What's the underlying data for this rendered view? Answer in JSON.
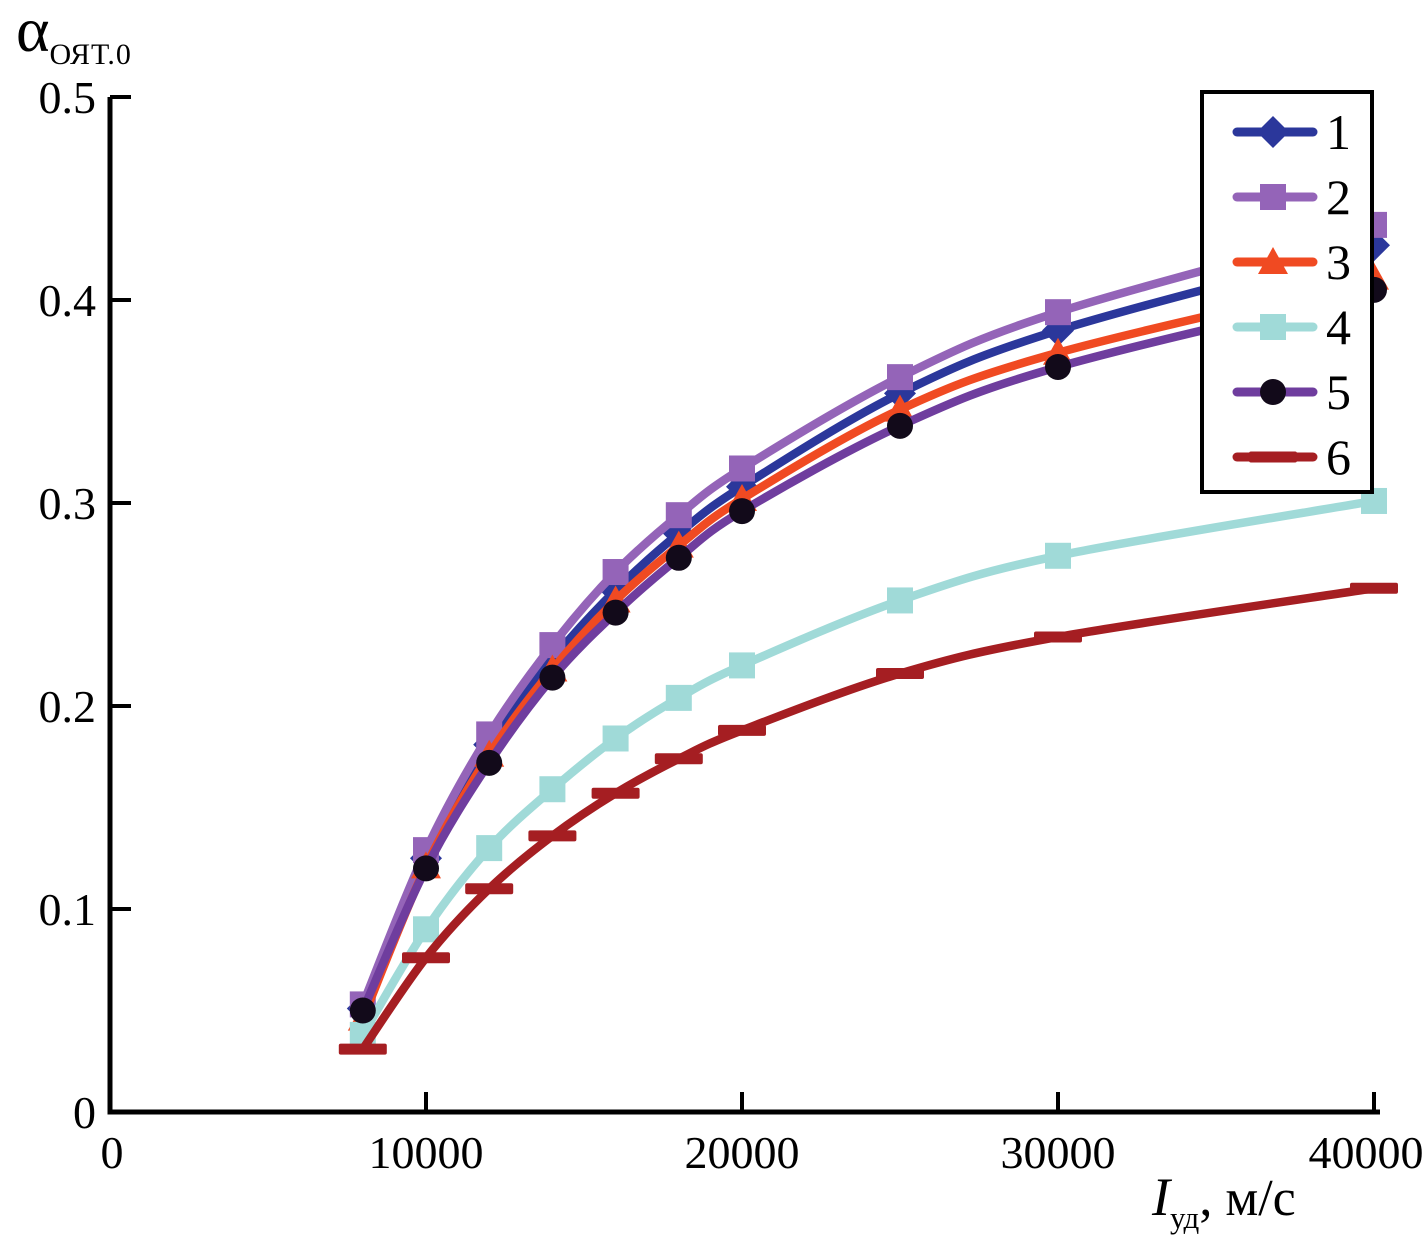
{
  "figure": {
    "background": "#ffffff",
    "y_axis_title": {
      "symbol": "α",
      "subscript": "ОЯТ.0"
    },
    "x_axis_title": {
      "symbol": "I",
      "subscript": "уд",
      "rest": ", м/с"
    }
  },
  "chart_data": {
    "type": "line",
    "title": "",
    "xlabel": "Iуд, м/с",
    "ylabel": "αОЯТ.0",
    "xlim": [
      0,
      40000
    ],
    "ylim": [
      0,
      0.5
    ],
    "x_ticks": [
      0,
      10000,
      20000,
      30000,
      40000
    ],
    "y_ticks": [
      0,
      0.1,
      0.2,
      0.3,
      0.4,
      0.5
    ],
    "grid": false,
    "axis_color": "#000000",
    "x": [
      8000,
      10000,
      12000,
      14000,
      16000,
      18000,
      20000,
      25000,
      30000,
      40000
    ],
    "series": [
      {
        "name": "1",
        "marker": "diamond",
        "color": "#2B379B",
        "marker_color": "#2B379B",
        "values": [
          0.051,
          0.125,
          0.181,
          0.223,
          0.257,
          0.285,
          0.308,
          0.354,
          0.385,
          0.427
        ]
      },
      {
        "name": "2",
        "marker": "square",
        "color": "#9464B8",
        "marker_color": "#9464B8",
        "values": [
          0.053,
          0.129,
          0.186,
          0.23,
          0.266,
          0.294,
          0.317,
          0.362,
          0.394,
          0.437
        ]
      },
      {
        "name": "3",
        "marker": "triangle",
        "color": "#F04A22",
        "marker_color": "#F04A22",
        "values": [
          0.046,
          0.121,
          0.176,
          0.218,
          0.252,
          0.279,
          0.302,
          0.346,
          0.374,
          0.411
        ]
      },
      {
        "name": "4",
        "marker": "square",
        "color": "#A0DAD8",
        "marker_color": "#A0DAD8",
        "values": [
          0.038,
          0.09,
          0.13,
          0.159,
          0.184,
          0.204,
          0.22,
          0.252,
          0.274,
          0.301
        ]
      },
      {
        "name": "5",
        "marker": "circle",
        "color": "#6F3D9E",
        "marker_color": "#120A1A",
        "values": [
          0.05,
          0.12,
          0.172,
          0.214,
          0.246,
          0.273,
          0.296,
          0.338,
          0.367,
          0.405
        ]
      },
      {
        "name": "6",
        "marker": "hdash",
        "color": "#A51E22",
        "marker_color": "#A51E22",
        "values": [
          0.031,
          0.076,
          0.11,
          0.136,
          0.157,
          0.174,
          0.188,
          0.216,
          0.234,
          0.258
        ]
      }
    ],
    "legend": {
      "position": "top-right",
      "entries": [
        "1",
        "2",
        "3",
        "4",
        "5",
        "6"
      ]
    }
  }
}
